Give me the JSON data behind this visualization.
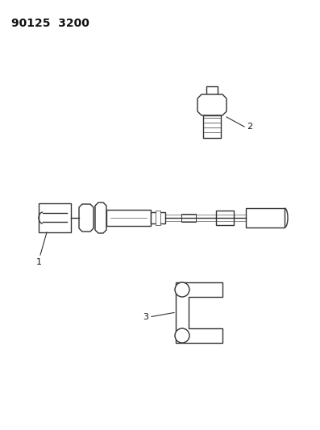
{
  "title": "90125  3200",
  "bg_color": "#ffffff",
  "line_color": "#333333",
  "fig_width": 3.97,
  "fig_height": 5.33,
  "dpi": 100
}
